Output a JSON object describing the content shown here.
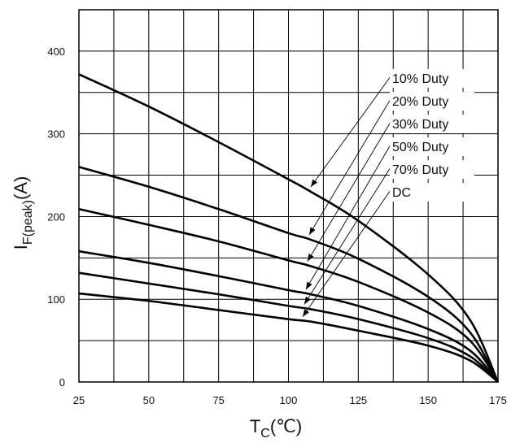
{
  "chart_data": {
    "type": "line",
    "xlabel_main": "T",
    "xlabel_sub": "C",
    "xlabel_unit": "(℃)",
    "ylabel_main": "I",
    "ylabel_sub": "F(peak)",
    "ylabel_unit": "(A)",
    "xlim": [
      25,
      175
    ],
    "ylim": [
      0,
      450
    ],
    "xticks": [
      25,
      50,
      75,
      100,
      125,
      150,
      175
    ],
    "yticks": [
      0,
      100,
      200,
      300,
      400
    ],
    "grid": true,
    "series": [
      {
        "name": "10% Duty",
        "x": [
          25,
          50,
          75,
          100,
          108,
          125,
          150,
          165,
          175
        ],
        "y": [
          372,
          333,
          290,
          245,
          230,
          195,
          130,
          75,
          0
        ]
      },
      {
        "name": "20% Duty",
        "x": [
          25,
          50,
          75,
          100,
          108,
          125,
          150,
          165,
          175
        ],
        "y": [
          260,
          236,
          209,
          180,
          172,
          149,
          103,
          60,
          0
        ]
      },
      {
        "name": "30% Duty",
        "x": [
          25,
          50,
          75,
          100,
          108,
          125,
          150,
          165,
          175
        ],
        "y": [
          209,
          190,
          170,
          147,
          140,
          121,
          84,
          50,
          0
        ]
      },
      {
        "name": "50% Duty",
        "x": [
          25,
          50,
          75,
          100,
          108,
          125,
          150,
          165,
          175
        ],
        "y": [
          158,
          144,
          128,
          111,
          106,
          92,
          64,
          38,
          0
        ]
      },
      {
        "name": "70% Duty",
        "x": [
          25,
          50,
          75,
          100,
          108,
          125,
          150,
          165,
          175
        ],
        "y": [
          132,
          119,
          106,
          92,
          88,
          76,
          53,
          31,
          0
        ]
      },
      {
        "name": "DC",
        "x": [
          25,
          50,
          75,
          100,
          108,
          125,
          150,
          165,
          175
        ],
        "y": [
          107,
          98,
          87,
          76,
          73,
          62,
          44,
          26,
          0
        ]
      }
    ],
    "legend": [
      "10% Duty",
      "20% Duty",
      "30% Duty",
      "50% Duty",
      "70% Duty",
      "DC"
    ],
    "legend_placement": "top-right, with arrows pointing to curves",
    "colors": {
      "line": "#000000",
      "grid": "#000000",
      "background": "#ffffff"
    }
  }
}
